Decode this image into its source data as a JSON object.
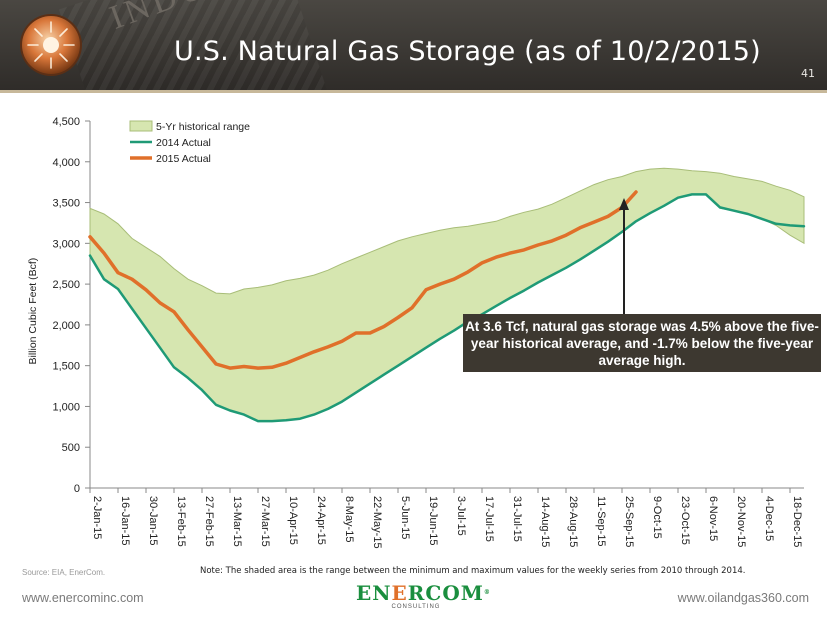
{
  "header": {
    "title": "U.S. Natural Gas Storage (as of 10/2/2015)",
    "page_number": "41",
    "watermark": "INDUSTRY"
  },
  "chart_data": {
    "type": "area",
    "title": "",
    "ylabel": "Billion Cubic Feet (Bcf)",
    "xlabel": "",
    "ylim": [
      0,
      4500
    ],
    "yticks": [
      0,
      500,
      1000,
      1500,
      2000,
      2500,
      3000,
      3500,
      4000,
      4500
    ],
    "ytick_labels": [
      "0",
      "500",
      "1,000",
      "1,500",
      "2,000",
      "2,500",
      "3,000",
      "3,500",
      "4,000",
      "4,500"
    ],
    "grid": false,
    "legend_position": "top-left",
    "categories": [
      "2-Jan-15",
      "16-Jan-15",
      "30-Jan-15",
      "13-Feb-15",
      "27-Feb-15",
      "13-Mar-15",
      "27-Mar-15",
      "10-Apr-15",
      "24-Apr-15",
      "8-May-15",
      "22-May-15",
      "5-Jun-15",
      "19-Jun-15",
      "3-Jul-15",
      "17-Jul-15",
      "31-Jul-15",
      "14-Aug-15",
      "28-Aug-15",
      "11-Sep-15",
      "25-Sep-15",
      "9-Oct-15",
      "23-Oct-15",
      "6-Nov-15",
      "20-Nov-15",
      "4-Dec-15",
      "18-Dec-15"
    ],
    "series": [
      {
        "name": "5-Yr historical range",
        "kind": "band",
        "color": "#d6e6b0",
        "x": [
          0,
          1,
          2,
          3,
          4,
          5,
          6,
          7,
          8,
          9,
          10,
          11,
          12,
          13,
          14,
          15,
          16,
          17,
          18,
          19,
          20,
          21,
          22,
          23,
          24,
          25,
          26,
          27,
          28,
          29,
          30,
          31,
          32,
          33,
          34,
          35,
          36,
          37,
          38,
          39,
          40,
          41,
          42,
          43,
          44,
          45,
          46,
          47,
          48,
          49,
          50,
          51
        ],
        "high": [
          3430,
          3360,
          3240,
          3060,
          2950,
          2840,
          2690,
          2560,
          2480,
          2390,
          2380,
          2440,
          2460,
          2490,
          2540,
          2570,
          2610,
          2670,
          2750,
          2820,
          2890,
          2960,
          3030,
          3080,
          3120,
          3160,
          3190,
          3210,
          3240,
          3270,
          3330,
          3380,
          3420,
          3480,
          3560,
          3640,
          3720,
          3780,
          3820,
          3880,
          3910,
          3920,
          3910,
          3890,
          3880,
          3860,
          3820,
          3790,
          3760,
          3700,
          3650,
          3570
        ],
        "low": [
          2850,
          2560,
          2440,
          2200,
          1960,
          1720,
          1480,
          1350,
          1200,
          1020,
          950,
          900,
          820,
          820,
          830,
          850,
          900,
          970,
          1060,
          1170,
          1280,
          1390,
          1500,
          1610,
          1720,
          1830,
          1930,
          2040,
          2130,
          2230,
          2330,
          2420,
          2520,
          2610,
          2700,
          2800,
          2910,
          3020,
          3140,
          3270,
          3370,
          3460,
          3560,
          3600,
          3600,
          3430,
          3400,
          3360,
          3300,
          3220,
          3100,
          3000
        ]
      },
      {
        "name": "2014 Actual",
        "kind": "line",
        "color": "#1f9a76",
        "x": [
          0,
          1,
          2,
          3,
          4,
          5,
          6,
          7,
          8,
          9,
          10,
          11,
          12,
          13,
          14,
          15,
          16,
          17,
          18,
          19,
          20,
          21,
          22,
          23,
          24,
          25,
          26,
          27,
          28,
          29,
          30,
          31,
          32,
          33,
          34,
          35,
          36,
          37,
          38,
          39,
          40,
          41,
          42,
          43,
          44,
          45,
          46,
          47,
          48,
          49,
          50,
          51
        ],
        "values": [
          2850,
          2560,
          2440,
          2200,
          1960,
          1720,
          1480,
          1350,
          1200,
          1020,
          950,
          900,
          820,
          820,
          830,
          850,
          900,
          970,
          1060,
          1170,
          1280,
          1390,
          1500,
          1610,
          1720,
          1830,
          1930,
          2040,
          2130,
          2230,
          2330,
          2420,
          2520,
          2610,
          2700,
          2800,
          2910,
          3020,
          3140,
          3270,
          3370,
          3460,
          3560,
          3600,
          3600,
          3440,
          3400,
          3360,
          3300,
          3240,
          3220,
          3210
        ]
      },
      {
        "name": "2015 Actual",
        "kind": "line",
        "color": "#e0702a",
        "x": [
          0,
          1,
          2,
          3,
          4,
          5,
          6,
          7,
          8,
          9,
          10,
          11,
          12,
          13,
          14,
          15,
          16,
          17,
          18,
          19,
          20,
          21,
          22,
          23,
          24,
          25,
          26,
          27,
          28,
          29,
          30,
          31,
          32,
          33,
          34,
          35,
          36,
          37,
          38,
          39
        ],
        "values": [
          3080,
          2880,
          2640,
          2560,
          2430,
          2270,
          2160,
          1940,
          1730,
          1520,
          1470,
          1490,
          1470,
          1480,
          1530,
          1600,
          1670,
          1730,
          1800,
          1900,
          1900,
          1980,
          2090,
          2210,
          2430,
          2500,
          2560,
          2650,
          2760,
          2830,
          2880,
          2920,
          2980,
          3030,
          3100,
          3190,
          3260,
          3330,
          3440,
          3630
        ]
      }
    ],
    "annotation": "At 3.6 Tcf, natural gas storage was 4.5% above the five-year historical average, and  -1.7% below the five-year average high."
  },
  "notes": {
    "source": "Source: EIA, EnerCom.",
    "shaded_note": "Note: The shaded area is the range between the minimum and maximum values for the weekly series from 2010 through 2014."
  },
  "footer": {
    "left_url": "www.enercominc.com",
    "right_url": "www.oilandgas360.com",
    "logo_brand_1": "EN",
    "logo_brand_2": "E",
    "logo_brand_3": "RCOM",
    "logo_reg": "®",
    "logo_sub": "CONSULTING"
  },
  "colors": {
    "header_bg": "#3a3733",
    "band_fill": "#d6e6b0",
    "band_stroke": "#a8bd78",
    "line_2014": "#1f9a76",
    "line_2015": "#e0702a",
    "callout_bg": "#3d3830",
    "brand_green": "#1a8e3e",
    "brand_orange": "#e0702a"
  }
}
